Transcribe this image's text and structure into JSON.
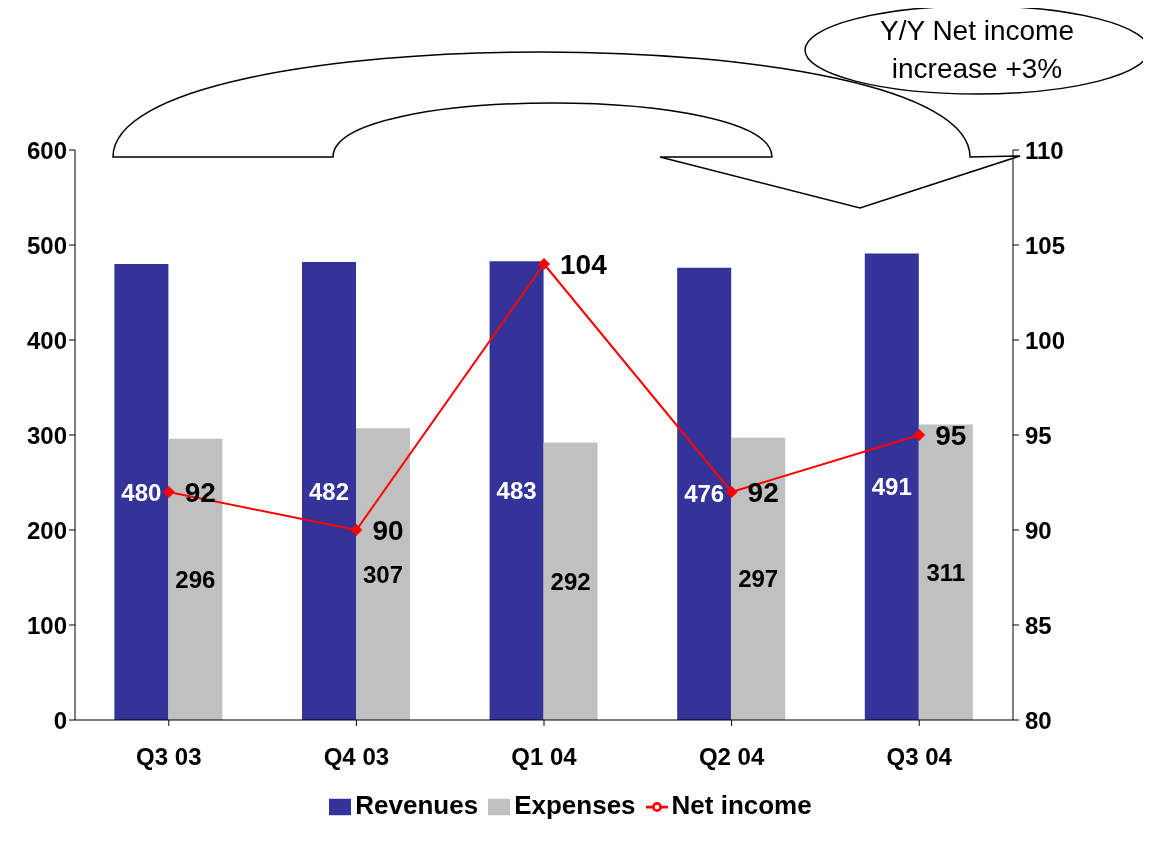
{
  "chart_data": {
    "type": "bar",
    "categories": [
      "Q3 03",
      "Q4 03",
      "Q1 04",
      "Q2 04",
      "Q3 04"
    ],
    "series": [
      {
        "name": "Revenues",
        "color": "#333399",
        "values": [
          480,
          482,
          483,
          476,
          491
        ]
      },
      {
        "name": "Expenses",
        "color": "#c0c0c0",
        "values": [
          296,
          307,
          292,
          297,
          311
        ]
      },
      {
        "name": "Net income",
        "type": "line",
        "axis": "y2",
        "color": "#ff0000",
        "marker": "diamond",
        "values": [
          92,
          90,
          104,
          92,
          95
        ]
      }
    ],
    "ylim": [
      0,
      600
    ],
    "yticks": [
      0,
      100,
      200,
      300,
      400,
      500,
      600
    ],
    "y2lim": [
      80,
      110
    ],
    "y2ticks": [
      80,
      85,
      90,
      95,
      100,
      105,
      110
    ],
    "data_labels": true,
    "grid": false,
    "legend": "bottom",
    "annotations": [
      "Y/Y Net income increase +3%"
    ]
  }
}
